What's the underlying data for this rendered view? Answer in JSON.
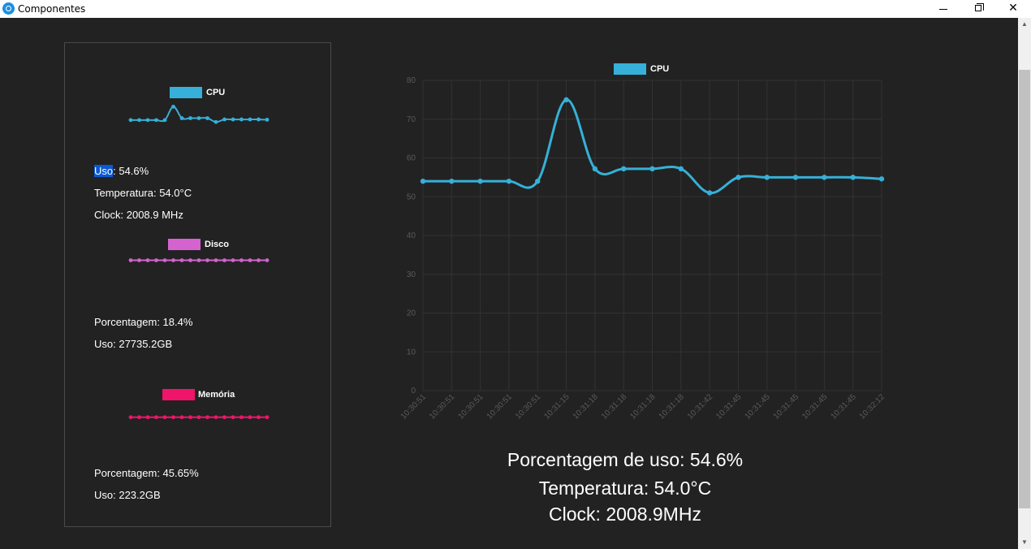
{
  "window": {
    "title": "Componentes",
    "icon": "app-icon",
    "controls": [
      "minimize-icon",
      "restore-icon",
      "close-icon"
    ]
  },
  "colors": {
    "background": "#222222",
    "cpu": "#36b0d8",
    "disk": "#d463d0",
    "memory": "#f0146a",
    "grid": "#333333",
    "tick": "#5a5a5a"
  },
  "sidebar": {
    "cpu": {
      "legend": "CPU",
      "use_label": "Uso",
      "use_value": ": 54.6%",
      "temperature": "Temperatura: 54.0°C",
      "clock": "Clock: 2008.9 MHz",
      "spark": [
        54,
        54,
        54,
        54,
        54,
        75,
        57,
        57,
        57,
        57,
        51,
        55,
        55,
        55,
        55,
        55,
        54.6
      ]
    },
    "disk": {
      "legend": "Disco",
      "percentage": "Porcentagem: 18.4%",
      "use": "Uso: 27735.2GB",
      "spark": [
        18.4,
        18.4,
        18.4,
        18.4,
        18.4,
        18.4,
        18.4,
        18.4,
        18.4,
        18.4,
        18.4,
        18.4,
        18.4,
        18.4,
        18.4,
        18.4,
        18.4
      ]
    },
    "memory": {
      "legend": "Memória",
      "percentage": "Porcentagem: 45.65%",
      "use": "Uso: 223.2GB",
      "spark": [
        45.65,
        45.65,
        45.65,
        45.65,
        45.65,
        45.65,
        45.65,
        45.65,
        45.65,
        45.65,
        45.65,
        45.65,
        45.65,
        45.65,
        45.65,
        45.65,
        45.65
      ]
    }
  },
  "main": {
    "usage": "Porcentagem de uso: 54.6%",
    "temperature": "Temperatura: 54.0°C",
    "clock": "Clock: 2008.9MHz"
  },
  "chart_data": {
    "type": "line",
    "title": "",
    "xlabel": "",
    "ylabel": "",
    "ylim": [
      0,
      80
    ],
    "yticks": [
      0,
      10,
      20,
      30,
      40,
      50,
      60,
      70,
      80
    ],
    "grid": true,
    "legend_position": "top",
    "x": [
      "10:30:51",
      "10:30:51",
      "10:30:51",
      "10:30:51",
      "10:30:51",
      "10:31:15",
      "10:31:18",
      "10:31:18",
      "10:31:18",
      "10:31:18",
      "10:31:42",
      "10:31:45",
      "10:31:45",
      "10:31:45",
      "10:31:45",
      "10:31:45",
      "10:32:12"
    ],
    "series": [
      {
        "name": "CPU",
        "values": [
          54,
          54,
          54,
          54,
          54,
          75,
          57.2,
          57.2,
          57.2,
          57.2,
          51,
          55,
          55,
          55,
          55,
          55,
          54.6
        ]
      }
    ]
  }
}
